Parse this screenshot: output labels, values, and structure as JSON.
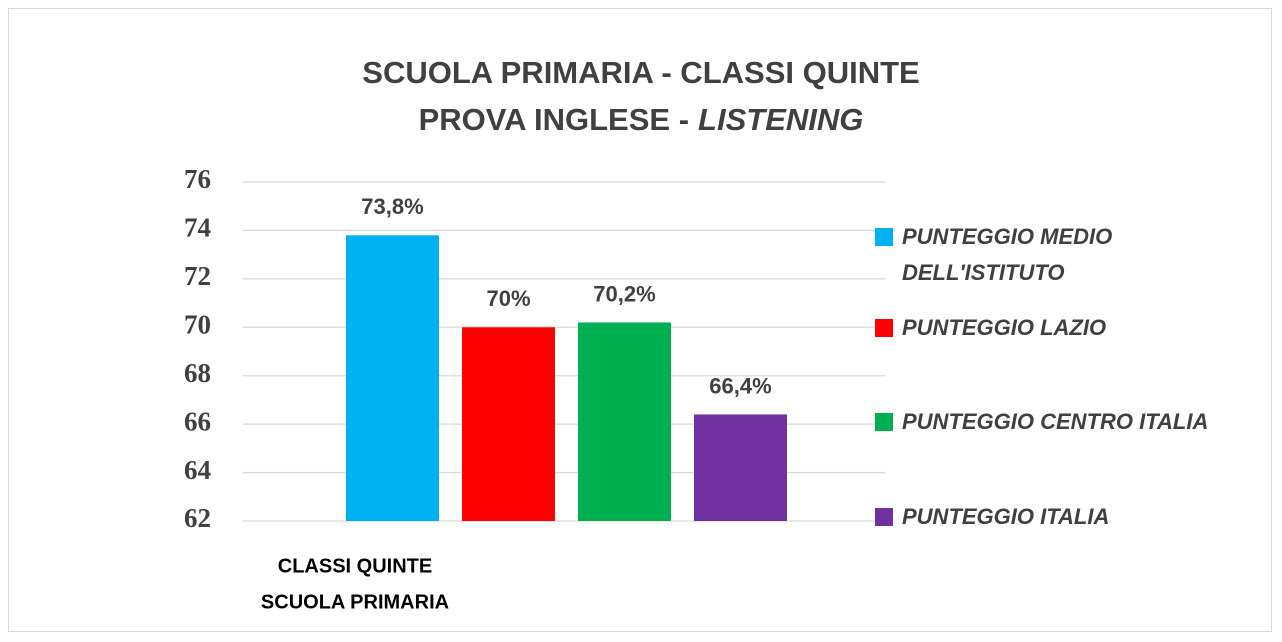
{
  "chart_data": {
    "type": "bar",
    "title": [
      "SCUOLA PRIMARIA - CLASSI QUINTE",
      [
        "PROVA INGLESE -",
        "LISTENING"
      ]
    ],
    "categories": [
      [
        "CLASSI  QUINTE",
        "SCUOLA PRIMARIA"
      ]
    ],
    "series": [
      {
        "name": "PUNTEGGIO MEDIO DELL'ISTITUTO",
        "color": "#00b0f0",
        "values": [
          73.8
        ],
        "value_labels": [
          "73,8%"
        ]
      },
      {
        "name": "PUNTEGGIO LAZIO",
        "color": "#ff0000",
        "values": [
          70
        ],
        "value_labels": [
          "70%"
        ]
      },
      {
        "name": "PUNTEGGIO CENTRO ITALIA",
        "color": "#00b050",
        "values": [
          70.2
        ],
        "value_labels": [
          "70,2%"
        ]
      },
      {
        "name": "PUNTEGGIO ITALIA",
        "color": "#7030a0",
        "values": [
          66.4
        ],
        "value_labels": [
          "66,4%"
        ]
      }
    ],
    "ylim": [
      62,
      76
    ],
    "yticks": [
      62,
      64,
      66,
      68,
      70,
      72,
      74,
      76
    ],
    "grid": true,
    "legend": "right"
  }
}
